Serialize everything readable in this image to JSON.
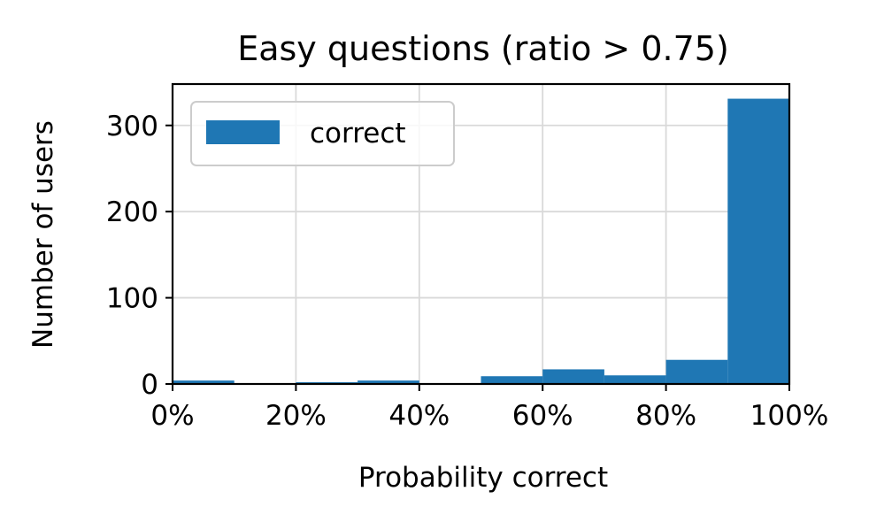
{
  "chart_data": {
    "type": "bar",
    "title": "Easy questions (ratio > 0.75)",
    "xlabel": "Probability correct",
    "ylabel": "Number of users",
    "xlim": [
      0,
      100
    ],
    "ylim": [
      0,
      348
    ],
    "x_ticks": [
      {
        "value": 0,
        "label": "0%"
      },
      {
        "value": 20,
        "label": "20%"
      },
      {
        "value": 40,
        "label": "40%"
      },
      {
        "value": 60,
        "label": "60%"
      },
      {
        "value": 80,
        "label": "80%"
      },
      {
        "value": 100,
        "label": "100%"
      }
    ],
    "y_ticks": [
      {
        "value": 0,
        "label": "0"
      },
      {
        "value": 100,
        "label": "100"
      },
      {
        "value": 200,
        "label": "200"
      },
      {
        "value": 300,
        "label": "300"
      }
    ],
    "grid": true,
    "legend_position": "top-left",
    "series": [
      {
        "name": "correct",
        "color": "#1f77b4",
        "bins": [
          {
            "start": 0,
            "end": 10,
            "value": 4
          },
          {
            "start": 10,
            "end": 20,
            "value": 0
          },
          {
            "start": 20,
            "end": 30,
            "value": 2
          },
          {
            "start": 30,
            "end": 40,
            "value": 4
          },
          {
            "start": 40,
            "end": 50,
            "value": 0
          },
          {
            "start": 50,
            "end": 60,
            "value": 9
          },
          {
            "start": 60,
            "end": 70,
            "value": 17
          },
          {
            "start": 70,
            "end": 80,
            "value": 10
          },
          {
            "start": 80,
            "end": 90,
            "value": 28
          },
          {
            "start": 90,
            "end": 100,
            "value": 331
          }
        ]
      }
    ]
  }
}
